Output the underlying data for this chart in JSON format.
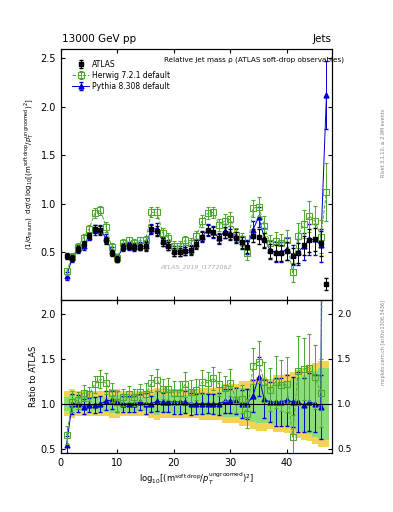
{
  "title_top": "13000 GeV pp",
  "title_right": "Jets",
  "plot_title": "Relative jet mass ρ (ATLAS soft-drop observables)",
  "watermark": "ATLAS_2019_I1772062",
  "rivet_label": "Rivet 3.1.10, ≥ 2.9M events",
  "arxiv_label": "mcplots.cern.ch [arXiv:1306.3436]",
  "ylabel_ratio": "Ratio to ATLAS",
  "xlim": [
    0,
    48
  ],
  "ylim_main": [
    0.0,
    2.6
  ],
  "ylim_ratio": [
    0.45,
    2.15
  ],
  "yticks_main": [
    0.5,
    1.0,
    1.5,
    2.0,
    2.5
  ],
  "yticks_ratio": [
    0.5,
    1.0,
    1.5,
    2.0
  ],
  "x_ticks": [
    0,
    10,
    20,
    30,
    40
  ],
  "atlas_x": [
    1,
    2,
    3,
    4,
    5,
    6,
    7,
    8,
    9,
    10,
    11,
    12,
    13,
    14,
    15,
    16,
    17,
    18,
    19,
    20,
    21,
    22,
    23,
    24,
    25,
    26,
    27,
    28,
    29,
    30,
    31,
    32,
    33,
    34,
    35,
    36,
    37,
    38,
    39,
    40,
    41,
    42,
    43,
    44,
    45,
    46,
    47
  ],
  "atlas_y": [
    0.46,
    0.44,
    0.53,
    0.58,
    0.67,
    0.74,
    0.73,
    0.62,
    0.49,
    0.43,
    0.55,
    0.56,
    0.55,
    0.55,
    0.56,
    0.74,
    0.72,
    0.6,
    0.56,
    0.5,
    0.5,
    0.51,
    0.52,
    0.58,
    0.66,
    0.73,
    0.71,
    0.64,
    0.7,
    0.68,
    0.65,
    0.6,
    0.55,
    0.67,
    0.66,
    0.62,
    0.51,
    0.49,
    0.49,
    0.51,
    0.46,
    0.49,
    0.57,
    0.62,
    0.63,
    0.59,
    0.17
  ],
  "atlas_yerr": [
    0.03,
    0.03,
    0.03,
    0.03,
    0.03,
    0.04,
    0.04,
    0.04,
    0.03,
    0.03,
    0.03,
    0.03,
    0.03,
    0.03,
    0.04,
    0.04,
    0.05,
    0.04,
    0.04,
    0.04,
    0.04,
    0.04,
    0.04,
    0.04,
    0.05,
    0.05,
    0.05,
    0.05,
    0.06,
    0.06,
    0.06,
    0.06,
    0.06,
    0.07,
    0.08,
    0.08,
    0.07,
    0.08,
    0.08,
    0.09,
    0.08,
    0.1,
    0.1,
    0.12,
    0.12,
    0.13,
    0.06
  ],
  "herwig_x": [
    1,
    2,
    3,
    4,
    5,
    6,
    7,
    8,
    9,
    10,
    11,
    12,
    13,
    14,
    15,
    16,
    17,
    18,
    19,
    20,
    21,
    22,
    23,
    24,
    25,
    26,
    27,
    28,
    29,
    30,
    31,
    32,
    33,
    34,
    35,
    36,
    37,
    38,
    39,
    40,
    41,
    42,
    43,
    44,
    45,
    46,
    47
  ],
  "herwig_y": [
    0.3,
    0.45,
    0.55,
    0.65,
    0.74,
    0.9,
    0.93,
    0.76,
    0.55,
    0.44,
    0.59,
    0.62,
    0.59,
    0.62,
    0.62,
    0.91,
    0.91,
    0.7,
    0.65,
    0.56,
    0.56,
    0.62,
    0.59,
    0.67,
    0.82,
    0.9,
    0.91,
    0.78,
    0.82,
    0.84,
    0.68,
    0.63,
    0.49,
    0.95,
    0.97,
    0.77,
    0.59,
    0.61,
    0.59,
    0.62,
    0.29,
    0.67,
    0.79,
    0.87,
    0.82,
    0.66,
    1.12
  ],
  "herwig_yerr": [
    0.04,
    0.04,
    0.04,
    0.04,
    0.04,
    0.05,
    0.05,
    0.05,
    0.04,
    0.04,
    0.04,
    0.04,
    0.04,
    0.04,
    0.05,
    0.05,
    0.06,
    0.05,
    0.05,
    0.05,
    0.05,
    0.05,
    0.05,
    0.05,
    0.06,
    0.06,
    0.06,
    0.06,
    0.07,
    0.07,
    0.07,
    0.07,
    0.07,
    0.09,
    0.1,
    0.1,
    0.09,
    0.1,
    0.1,
    0.11,
    0.1,
    0.13,
    0.14,
    0.16,
    0.16,
    0.17,
    0.3
  ],
  "pythia_x": [
    1,
    2,
    3,
    4,
    5,
    6,
    7,
    8,
    9,
    10,
    11,
    12,
    13,
    14,
    15,
    16,
    17,
    18,
    19,
    20,
    21,
    22,
    23,
    24,
    25,
    26,
    27,
    28,
    29,
    30,
    31,
    32,
    33,
    34,
    35,
    36,
    37,
    38,
    39,
    40,
    41,
    42,
    43,
    44,
    45,
    46,
    47
  ],
  "pythia_y": [
    0.25,
    0.44,
    0.53,
    0.56,
    0.66,
    0.73,
    0.73,
    0.64,
    0.51,
    0.44,
    0.55,
    0.56,
    0.55,
    0.56,
    0.56,
    0.74,
    0.74,
    0.61,
    0.57,
    0.51,
    0.51,
    0.52,
    0.52,
    0.58,
    0.66,
    0.73,
    0.71,
    0.64,
    0.72,
    0.7,
    0.67,
    0.6,
    0.55,
    0.73,
    0.86,
    0.65,
    0.52,
    0.5,
    0.5,
    0.53,
    0.47,
    0.5,
    0.56,
    0.63,
    0.63,
    0.57,
    2.12
  ],
  "pythia_yerr": [
    0.04,
    0.04,
    0.04,
    0.04,
    0.04,
    0.05,
    0.05,
    0.05,
    0.04,
    0.04,
    0.04,
    0.04,
    0.04,
    0.04,
    0.05,
    0.05,
    0.06,
    0.05,
    0.05,
    0.05,
    0.05,
    0.05,
    0.05,
    0.05,
    0.06,
    0.06,
    0.06,
    0.06,
    0.07,
    0.07,
    0.07,
    0.07,
    0.07,
    0.09,
    0.1,
    0.1,
    0.09,
    0.1,
    0.1,
    0.11,
    0.1,
    0.13,
    0.14,
    0.16,
    0.16,
    0.17,
    0.35
  ],
  "atlas_color": "#000000",
  "herwig_color": "#4da830",
  "pythia_color": "#0000cc",
  "yellow_band_lo": [
    0.86,
    0.84,
    0.86,
    0.86,
    0.86,
    0.86,
    0.86,
    0.86,
    0.84,
    0.84,
    0.86,
    0.86,
    0.86,
    0.86,
    0.86,
    0.84,
    0.82,
    0.84,
    0.84,
    0.84,
    0.84,
    0.84,
    0.84,
    0.84,
    0.82,
    0.82,
    0.82,
    0.82,
    0.78,
    0.78,
    0.78,
    0.75,
    0.75,
    0.72,
    0.7,
    0.7,
    0.72,
    0.68,
    0.68,
    0.67,
    0.65,
    0.62,
    0.6,
    0.58,
    0.55,
    0.52,
    0.52
  ],
  "yellow_band_hi": [
    1.14,
    1.16,
    1.14,
    1.14,
    1.14,
    1.14,
    1.14,
    1.14,
    1.16,
    1.16,
    1.14,
    1.14,
    1.14,
    1.14,
    1.14,
    1.16,
    1.18,
    1.16,
    1.16,
    1.16,
    1.16,
    1.16,
    1.16,
    1.16,
    1.18,
    1.18,
    1.18,
    1.18,
    1.22,
    1.22,
    1.22,
    1.25,
    1.25,
    1.28,
    1.3,
    1.3,
    1.28,
    1.32,
    1.32,
    1.33,
    1.35,
    1.38,
    1.4,
    1.42,
    1.45,
    1.48,
    1.48
  ],
  "green_band_lo": [
    0.92,
    0.9,
    0.92,
    0.92,
    0.92,
    0.92,
    0.92,
    0.92,
    0.9,
    0.9,
    0.92,
    0.92,
    0.92,
    0.92,
    0.92,
    0.9,
    0.88,
    0.9,
    0.9,
    0.9,
    0.9,
    0.9,
    0.9,
    0.9,
    0.88,
    0.88,
    0.88,
    0.88,
    0.85,
    0.85,
    0.85,
    0.83,
    0.83,
    0.8,
    0.78,
    0.78,
    0.8,
    0.76,
    0.76,
    0.75,
    0.73,
    0.7,
    0.68,
    0.66,
    0.63,
    0.6,
    0.6
  ],
  "green_band_hi": [
    1.08,
    1.1,
    1.08,
    1.08,
    1.08,
    1.08,
    1.08,
    1.08,
    1.1,
    1.1,
    1.08,
    1.08,
    1.08,
    1.08,
    1.08,
    1.1,
    1.12,
    1.1,
    1.1,
    1.1,
    1.1,
    1.1,
    1.1,
    1.1,
    1.12,
    1.12,
    1.12,
    1.12,
    1.15,
    1.15,
    1.15,
    1.17,
    1.17,
    1.2,
    1.22,
    1.22,
    1.2,
    1.24,
    1.24,
    1.25,
    1.27,
    1.3,
    1.32,
    1.34,
    1.37,
    1.4,
    1.4
  ]
}
